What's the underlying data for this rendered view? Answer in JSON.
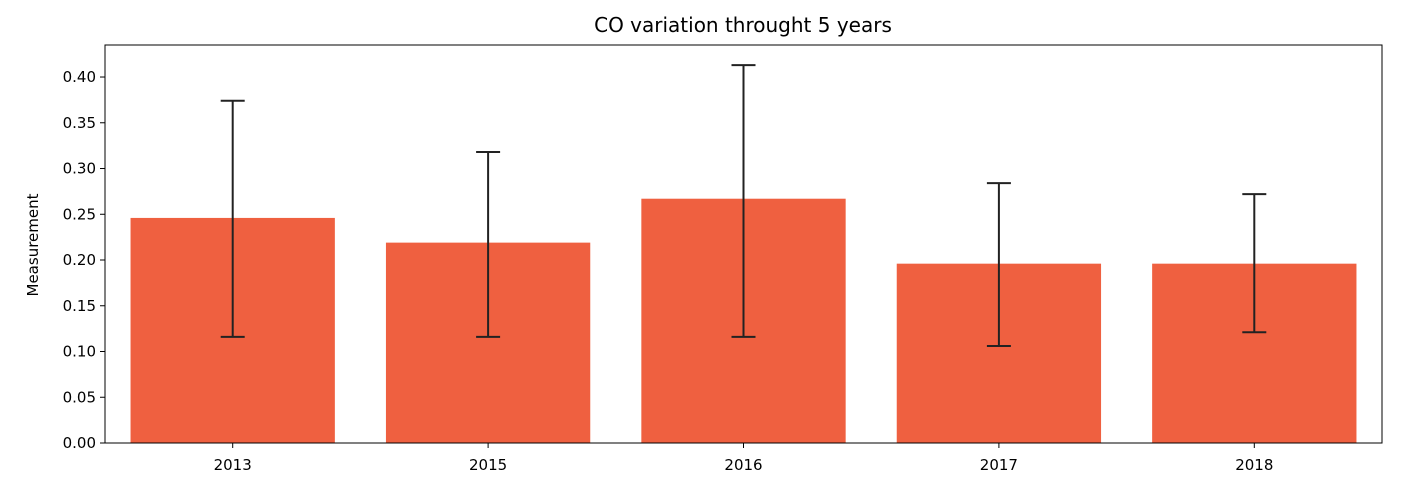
{
  "chart_data": {
    "type": "bar",
    "title": "CO variation throught 5 years",
    "xlabel": "",
    "ylabel": "Measurement",
    "categories": [
      "2013",
      "2015",
      "2016",
      "2017",
      "2018"
    ],
    "values": [
      0.246,
      0.219,
      0.267,
      0.196,
      0.196
    ],
    "error_low": [
      0.116,
      0.116,
      0.116,
      0.106,
      0.121
    ],
    "error_high": [
      0.374,
      0.318,
      0.413,
      0.284,
      0.272
    ],
    "ylim": [
      0,
      0.435
    ],
    "yticks": [
      "0.00",
      "0.05",
      "0.10",
      "0.15",
      "0.20",
      "0.25",
      "0.30",
      "0.35",
      "0.40"
    ],
    "grid": false,
    "bar_color": "#ef6040",
    "error_color": "#222222"
  }
}
